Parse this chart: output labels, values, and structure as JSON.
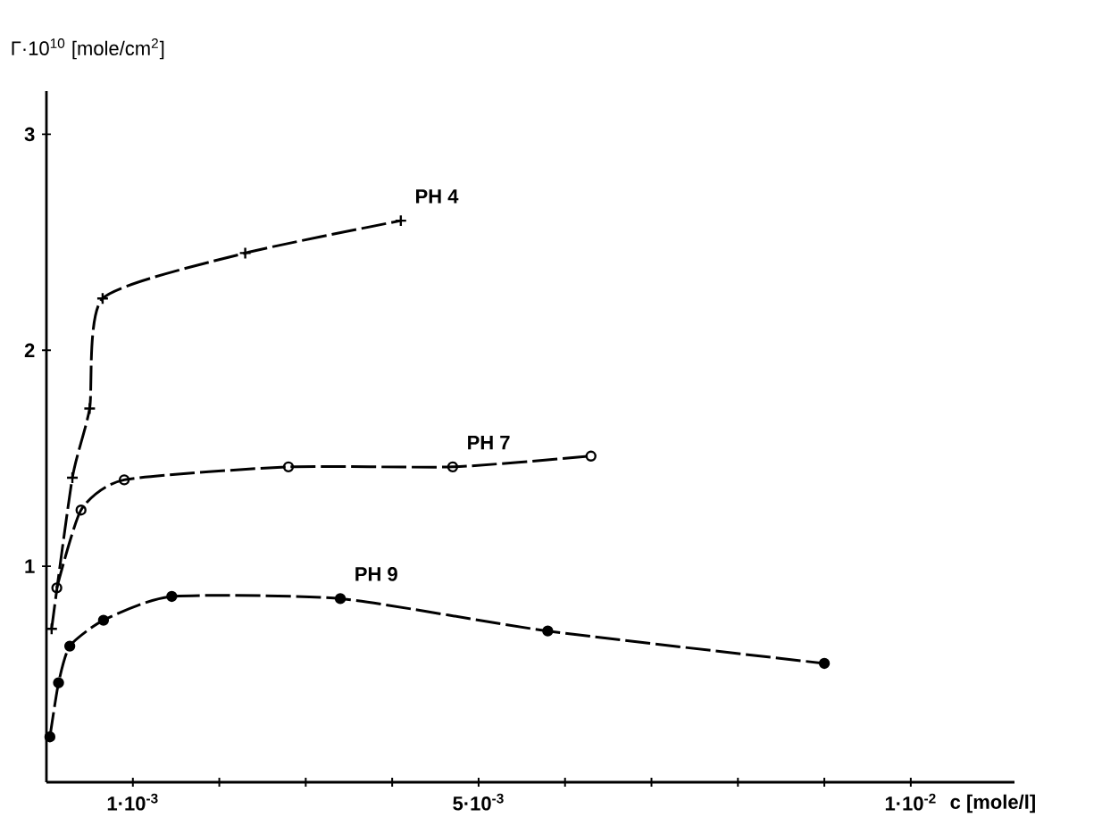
{
  "chart_data": {
    "type": "line",
    "xlabel": "c [mole/l]",
    "ylabel": "Γ·10$^{10}$ [mole/cm$^{2}$]",
    "xlim": [
      0,
      0.0112
    ],
    "ylim": [
      0,
      3.2
    ],
    "xticks": [
      {
        "value": 0.001,
        "label": "1·10$^{-3}$"
      },
      {
        "value": 0.002,
        "label": null
      },
      {
        "value": 0.003,
        "label": null
      },
      {
        "value": 0.004,
        "label": null
      },
      {
        "value": 0.005,
        "label": "5·10$^{-3}$"
      },
      {
        "value": 0.006,
        "label": null
      },
      {
        "value": 0.007,
        "label": null
      },
      {
        "value": 0.008,
        "label": null
      },
      {
        "value": 0.009,
        "label": null
      },
      {
        "value": 0.01,
        "label": "1·10$^{-2}$"
      }
    ],
    "yticks": [
      1,
      2,
      3
    ],
    "line_style": "dashed",
    "series": [
      {
        "name": "PH 4",
        "color": "#000000",
        "marker": "cross",
        "x": [
          6e-05,
          0.0003,
          0.0005,
          0.00065,
          0.0023,
          0.0041
        ],
        "values": [
          0.71,
          1.41,
          1.73,
          2.24,
          2.45,
          2.6
        ]
      },
      {
        "name": "PH 7",
        "color": "#000000",
        "marker": "circle",
        "x": [
          0.00012,
          0.0004,
          0.0009,
          0.0028,
          0.0047,
          0.0063
        ],
        "values": [
          0.9,
          1.26,
          1.4,
          1.46,
          1.46,
          1.51
        ]
      },
      {
        "name": "PH 9",
        "color": "#000000",
        "marker": "dot",
        "x": [
          4e-05,
          0.00014,
          0.00027,
          0.00066,
          0.00145,
          0.0034,
          0.0058,
          0.009
        ],
        "values": [
          0.21,
          0.46,
          0.63,
          0.75,
          0.86,
          0.85,
          0.7,
          0.55
        ]
      }
    ]
  }
}
